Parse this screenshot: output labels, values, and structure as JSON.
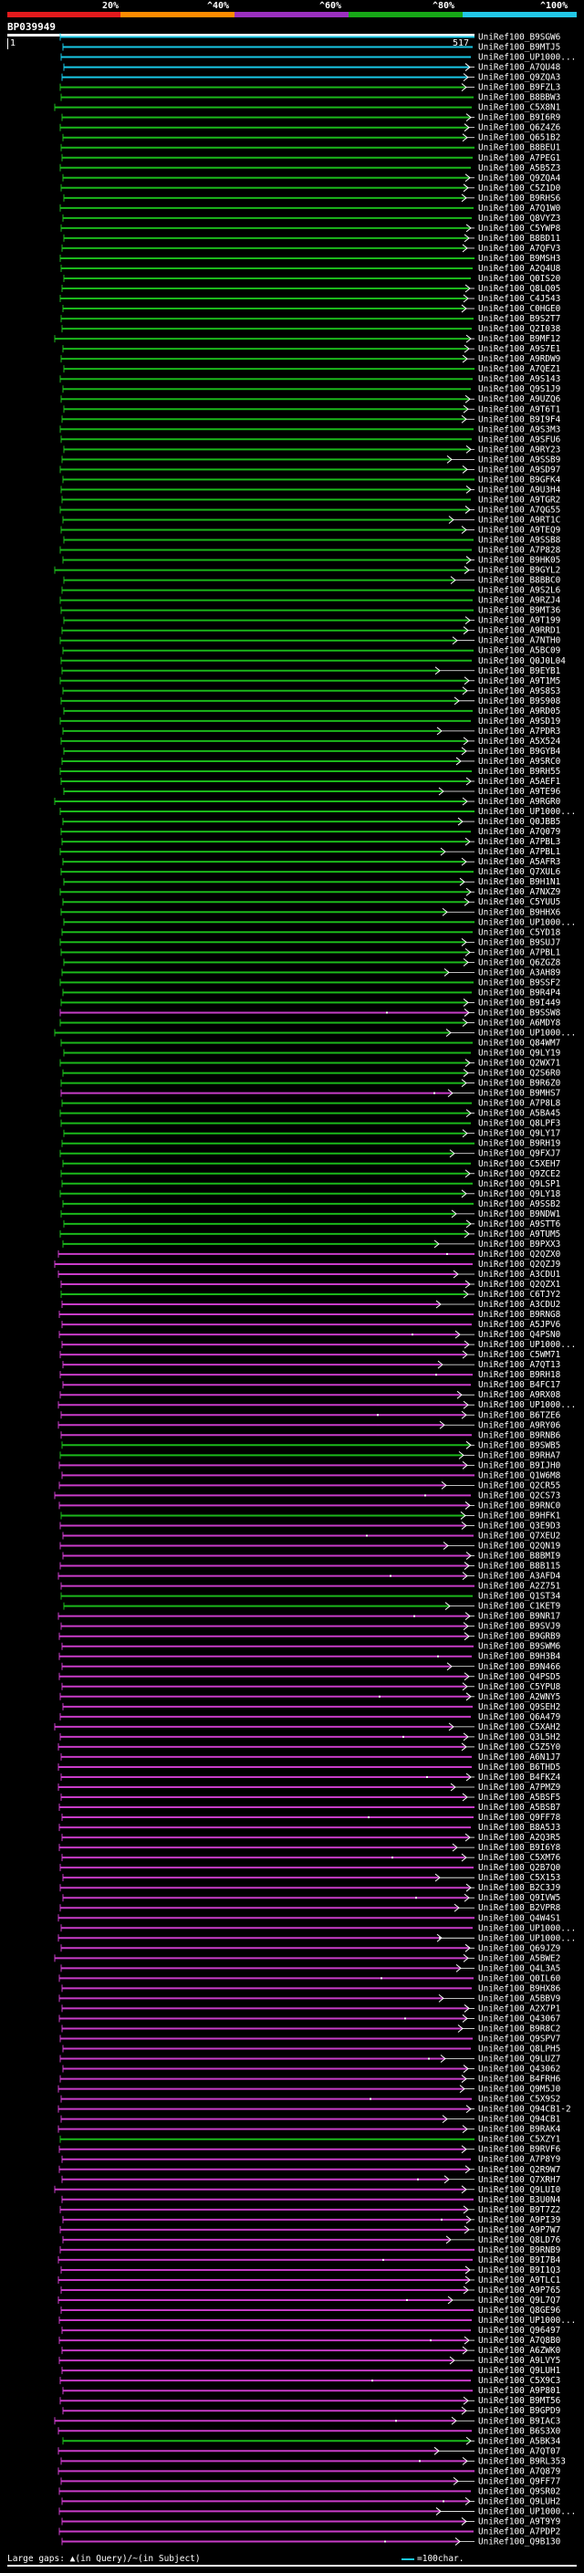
{
  "legend": {
    "labels": [
      "20%",
      "^40%",
      "^60%",
      "^80%",
      "^100%"
    ],
    "colors": [
      "#e31a1c",
      "#ff8c00",
      "#9b30c0",
      "#17a817",
      "#22c8e8"
    ]
  },
  "query": {
    "name": "BP039949",
    "start": "1",
    "end": "517"
  },
  "colors": {
    "cyan": "#19c8e6",
    "green": "#1bb81b",
    "magenta": "#c83cc8",
    "line": "#ffffff"
  },
  "hits": [
    {
      "id": "UniRef100_B9SGW6",
      "color": "cyan"
    },
    {
      "id": "UniRef100_B9MTJ5",
      "color": "cyan"
    },
    {
      "id": "UniRef100_UP1000...",
      "color": "cyan"
    },
    {
      "id": "UniRef100_A7QU48",
      "color": "cyan"
    },
    {
      "id": "UniRef100_Q9ZQA3",
      "color": "cyan"
    },
    {
      "id": "UniRef100_B9FZL3",
      "color": "green"
    },
    {
      "id": "UniRef100_B8BBW3",
      "color": "green"
    },
    {
      "id": "UniRef100_C5X8N1",
      "color": "green"
    },
    {
      "id": "UniRef100_B9I6R9",
      "color": "green"
    },
    {
      "id": "UniRef100_Q6Z4Z6",
      "color": "green"
    },
    {
      "id": "UniRef100_Q651B2",
      "color": "green"
    },
    {
      "id": "UniRef100_B8BEU1",
      "color": "green"
    },
    {
      "id": "UniRef100_A7PEG1",
      "color": "green"
    },
    {
      "id": "UniRef100_A5B5Z3",
      "color": "green"
    },
    {
      "id": "UniRef100_Q9ZQA4",
      "color": "green"
    },
    {
      "id": "UniRef100_C5Z1D0",
      "color": "green"
    },
    {
      "id": "UniRef100_B9RHS6",
      "color": "green"
    },
    {
      "id": "UniRef100_A7Q1W0",
      "color": "green"
    },
    {
      "id": "UniRef100_Q8VYZ3",
      "color": "green"
    },
    {
      "id": "UniRef100_C5YWP8",
      "color": "green"
    },
    {
      "id": "UniRef100_B8BD11",
      "color": "green"
    },
    {
      "id": "UniRef100_A7QFV3",
      "color": "green"
    },
    {
      "id": "UniRef100_B9MSH3",
      "color": "green"
    },
    {
      "id": "UniRef100_A2Q4U8",
      "color": "green"
    },
    {
      "id": "UniRef100_Q0IS20",
      "color": "green"
    },
    {
      "id": "UniRef100_Q8LQ05",
      "color": "green"
    },
    {
      "id": "UniRef100_C4J543",
      "color": "green"
    },
    {
      "id": "UniRef100_C0HGE0",
      "color": "green"
    },
    {
      "id": "UniRef100_B9S2T7",
      "color": "green"
    },
    {
      "id": "UniRef100_Q2I038",
      "color": "green"
    },
    {
      "id": "UniRef100_B9MF12",
      "color": "green"
    },
    {
      "id": "UniRef100_A9S7E1",
      "color": "green"
    },
    {
      "id": "UniRef100_A9RDW9",
      "color": "green"
    },
    {
      "id": "UniRef100_A7QEZ1",
      "color": "green"
    },
    {
      "id": "UniRef100_A9S143",
      "color": "green"
    },
    {
      "id": "UniRef100_Q9S1J9",
      "color": "green"
    },
    {
      "id": "UniRef100_A9UZQ6",
      "color": "green"
    },
    {
      "id": "UniRef100_A9T6T1",
      "color": "green"
    },
    {
      "id": "UniRef100_B9I9F4",
      "color": "green"
    },
    {
      "id": "UniRef100_A9S3M3",
      "color": "green"
    },
    {
      "id": "UniRef100_A9SFU6",
      "color": "green"
    },
    {
      "id": "UniRef100_A9RY23",
      "color": "green"
    },
    {
      "id": "UniRef100_A9SSB9",
      "color": "green"
    },
    {
      "id": "UniRef100_A9SD97",
      "color": "green"
    },
    {
      "id": "UniRef100_B9GFK4",
      "color": "green"
    },
    {
      "id": "UniRef100_A9U3H4",
      "color": "green"
    },
    {
      "id": "UniRef100_A9TGR2",
      "color": "green"
    },
    {
      "id": "UniRef100_A7QG55",
      "color": "green"
    },
    {
      "id": "UniRef100_A9RT1C",
      "color": "green"
    },
    {
      "id": "UniRef100_A9TEQ9",
      "color": "green"
    },
    {
      "id": "UniRef100_A9SSB8",
      "color": "green"
    },
    {
      "id": "UniRef100_A7P828",
      "color": "green"
    },
    {
      "id": "UniRef100_B9HK05",
      "color": "green"
    },
    {
      "id": "UniRef100_B9GYL2",
      "color": "green"
    },
    {
      "id": "UniRef100_B8BBC0",
      "color": "green"
    },
    {
      "id": "UniRef100_A9S2L6",
      "color": "green"
    },
    {
      "id": "UniRef100_A9RZJ4",
      "color": "green"
    },
    {
      "id": "UniRef100_B9MT36",
      "color": "green"
    },
    {
      "id": "UniRef100_A9T199",
      "color": "green"
    },
    {
      "id": "UniRef100_A9RRD1",
      "color": "green"
    },
    {
      "id": "UniRef100_A7NTH0",
      "color": "green"
    },
    {
      "id": "UniRef100_A5BC09",
      "color": "green"
    },
    {
      "id": "UniRef100_Q0J0L04",
      "color": "green"
    },
    {
      "id": "UniRef100_B9EYB1",
      "color": "green"
    },
    {
      "id": "UniRef100_A9T1M5",
      "color": "green"
    },
    {
      "id": "UniRef100_A9S8S3",
      "color": "green"
    },
    {
      "id": "UniRef100_B9S908",
      "color": "green"
    },
    {
      "id": "UniRef100_A9RD05",
      "color": "green"
    },
    {
      "id": "UniRef100_A9SD19",
      "color": "green"
    },
    {
      "id": "UniRef100_A7PDR3",
      "color": "green"
    },
    {
      "id": "UniRef100_A5X524",
      "color": "green"
    },
    {
      "id": "UniRef100_B9GYB4",
      "color": "green"
    },
    {
      "id": "UniRef100_A9SRC0",
      "color": "green"
    },
    {
      "id": "UniRef100_B9RH55",
      "color": "green"
    },
    {
      "id": "UniRef100_A5AEF1",
      "color": "green"
    },
    {
      "id": "UniRef100_A9TE96",
      "color": "green"
    },
    {
      "id": "UniRef100_A9RGR0",
      "color": "green"
    },
    {
      "id": "UniRef100_UP1000...",
      "color": "green"
    },
    {
      "id": "UniRef100_Q0JBB5",
      "color": "green"
    },
    {
      "id": "UniRef100_A7Q079",
      "color": "green"
    },
    {
      "id": "UniRef100_A7PBL3",
      "color": "green"
    },
    {
      "id": "UniRef100_A7PBL1",
      "color": "green"
    },
    {
      "id": "UniRef100_A5AFR3",
      "color": "green"
    },
    {
      "id": "UniRef100_Q7XUL6",
      "color": "green"
    },
    {
      "id": "UniRef100_B9H1N1",
      "color": "green"
    },
    {
      "id": "UniRef100_A7NXZ9",
      "color": "green"
    },
    {
      "id": "UniRef100_C5YUU5",
      "color": "green"
    },
    {
      "id": "UniRef100_B9HHX6",
      "color": "green"
    },
    {
      "id": "UniRef100_UP1000...",
      "color": "green"
    },
    {
      "id": "UniRef100_C5YD18",
      "color": "green"
    },
    {
      "id": "UniRef100_B9SUJ7",
      "color": "green"
    },
    {
      "id": "UniRef100_A7PBL1",
      "color": "green"
    },
    {
      "id": "UniRef100_Q6ZGZ8",
      "color": "green"
    },
    {
      "id": "UniRef100_A3AH89",
      "color": "green"
    },
    {
      "id": "UniRef100_B9SSF2",
      "color": "green"
    },
    {
      "id": "UniRef100_B9R4P4",
      "color": "green"
    },
    {
      "id": "UniRef100_B9I449",
      "color": "green"
    },
    {
      "id": "UniRef100_B9SSW8",
      "color": "magenta"
    },
    {
      "id": "UniRef100_A6MDY8",
      "color": "green"
    },
    {
      "id": "UniRef100_UP1000...",
      "color": "green"
    },
    {
      "id": "UniRef100_Q84WM7",
      "color": "green"
    },
    {
      "id": "UniRef100_Q9LY19",
      "color": "green"
    },
    {
      "id": "UniRef100_Q2WX71",
      "color": "green"
    },
    {
      "id": "UniRef100_Q2S6R0",
      "color": "green"
    },
    {
      "id": "UniRef100_B9R6Z0",
      "color": "green"
    },
    {
      "id": "UniRef100_B9MHS7",
      "color": "magenta"
    },
    {
      "id": "UniRef100_A7P8L8",
      "color": "green"
    },
    {
      "id": "UniRef100_A5BA45",
      "color": "green"
    },
    {
      "id": "UniRef100_Q8LPF3",
      "color": "green"
    },
    {
      "id": "UniRef100_Q9LY17",
      "color": "green"
    },
    {
      "id": "UniRef100_B9RH19",
      "color": "green"
    },
    {
      "id": "UniRef100_Q9FXJ7",
      "color": "green"
    },
    {
      "id": "UniRef100_C5XEH7",
      "color": "green"
    },
    {
      "id": "UniRef100_Q9ZCE2",
      "color": "green"
    },
    {
      "id": "UniRef100_Q9LSP1",
      "color": "green"
    },
    {
      "id": "UniRef100_Q9LY18",
      "color": "green"
    },
    {
      "id": "UniRef100_A9SSB2",
      "color": "green"
    },
    {
      "id": "UniRef100_B9NDW1",
      "color": "green"
    },
    {
      "id": "UniRef100_A9STT6",
      "color": "green"
    },
    {
      "id": "UniRef100_A9TUM5",
      "color": "green"
    },
    {
      "id": "UniRef100_B9PXX3",
      "color": "green"
    },
    {
      "id": "UniRef100_Q2QZX0",
      "color": "magenta"
    },
    {
      "id": "UniRef100_Q2QZJ9",
      "color": "magenta"
    },
    {
      "id": "UniRef100_A3CDU1",
      "color": "magenta"
    },
    {
      "id": "UniRef100_Q2QZX1",
      "color": "magenta"
    },
    {
      "id": "UniRef100_C6TJY2",
      "color": "green"
    },
    {
      "id": "UniRef100_A3CDU2",
      "color": "magenta"
    },
    {
      "id": "UniRef100_B9RNG8",
      "color": "magenta"
    },
    {
      "id": "UniRef100_A5JPV6",
      "color": "magenta"
    },
    {
      "id": "UniRef100_Q4PSN0",
      "color": "magenta"
    },
    {
      "id": "UniRef100_UP1000...",
      "color": "magenta"
    },
    {
      "id": "UniRef100_C5WM71",
      "color": "magenta"
    },
    {
      "id": "UniRef100_A7QT13",
      "color": "magenta"
    },
    {
      "id": "UniRef100_B9RH18",
      "color": "magenta"
    },
    {
      "id": "UniRef100_B4FC17",
      "color": "magenta"
    },
    {
      "id": "UniRef100_A9RX08",
      "color": "magenta"
    },
    {
      "id": "UniRef100_UP1000...",
      "color": "magenta"
    },
    {
      "id": "UniRef100_B6TZE6",
      "color": "magenta"
    },
    {
      "id": "UniRef100_A9RY06",
      "color": "magenta"
    },
    {
      "id": "UniRef100_B9RNB6",
      "color": "magenta"
    },
    {
      "id": "UniRef100_B9SWB5",
      "color": "green"
    },
    {
      "id": "UniRef100_B9RHA7",
      "color": "green"
    },
    {
      "id": "UniRef100_B9IJH0",
      "color": "magenta"
    },
    {
      "id": "UniRef100_Q1W6M8",
      "color": "magenta"
    },
    {
      "id": "UniRef100_Q2CR55",
      "color": "magenta"
    },
    {
      "id": "UniRef100_Q2CS73",
      "color": "magenta"
    },
    {
      "id": "UniRef100_B9RNC0",
      "color": "magenta"
    },
    {
      "id": "UniRef100_B9HFK1",
      "color": "green"
    },
    {
      "id": "UniRef100_Q3E9D3",
      "color": "magenta"
    },
    {
      "id": "UniRef100_Q7XEU2",
      "color": "magenta"
    },
    {
      "id": "UniRef100_Q2QN19",
      "color": "magenta"
    },
    {
      "id": "UniRef100_B8BMI9",
      "color": "magenta"
    },
    {
      "id": "UniRef100_B8B115",
      "color": "magenta"
    },
    {
      "id": "UniRef100_A3AFD4",
      "color": "magenta"
    },
    {
      "id": "UniRef100_A2Z751",
      "color": "magenta"
    },
    {
      "id": "UniRef100_Q1ST34",
      "color": "green"
    },
    {
      "id": "UniRef100_C1KET9",
      "color": "green"
    },
    {
      "id": "UniRef100_B9NR17",
      "color": "magenta"
    },
    {
      "id": "UniRef100_B9SVJ9",
      "color": "magenta"
    },
    {
      "id": "UniRef100_B9GRB9",
      "color": "magenta"
    },
    {
      "id": "UniRef100_B9SWM6",
      "color": "magenta"
    },
    {
      "id": "UniRef100_B9H3B4",
      "color": "magenta"
    },
    {
      "id": "UniRef100_B9N466",
      "color": "magenta"
    },
    {
      "id": "UniRef100_Q4PSD5",
      "color": "magenta"
    },
    {
      "id": "UniRef100_C5YPU8",
      "color": "magenta"
    },
    {
      "id": "UniRef100_A2WNY5",
      "color": "magenta"
    },
    {
      "id": "UniRef100_Q9SEH2",
      "color": "magenta"
    },
    {
      "id": "UniRef100_Q6A479",
      "color": "magenta"
    },
    {
      "id": "UniRef100_C5XAH2",
      "color": "magenta"
    },
    {
      "id": "UniRef100_Q3L5H2",
      "color": "magenta"
    },
    {
      "id": "UniRef100_C5Z5Y0",
      "color": "magenta"
    },
    {
      "id": "UniRef100_A6N1J7",
      "color": "magenta"
    },
    {
      "id": "UniRef100_B6THD5",
      "color": "magenta"
    },
    {
      "id": "UniRef100_B4FKZ4",
      "color": "magenta"
    },
    {
      "id": "UniRef100_A7PMZ9",
      "color": "magenta"
    },
    {
      "id": "UniRef100_A5BSF5",
      "color": "magenta"
    },
    {
      "id": "UniRef100_A5BSB7",
      "color": "magenta"
    },
    {
      "id": "UniRef100_Q9FF78",
      "color": "magenta"
    },
    {
      "id": "UniRef100_B8A5J3",
      "color": "magenta"
    },
    {
      "id": "UniRef100_A2Q3R5",
      "color": "magenta"
    },
    {
      "id": "UniRef100_B9I6Y8",
      "color": "magenta"
    },
    {
      "id": "UniRef100_C5XM76",
      "color": "magenta"
    },
    {
      "id": "UniRef100_Q2B7Q0",
      "color": "magenta"
    },
    {
      "id": "UniRef100_C5X153",
      "color": "magenta"
    },
    {
      "id": "UniRef100_B2C3J9",
      "color": "magenta"
    },
    {
      "id": "UniRef100_Q9IVW5",
      "color": "magenta"
    },
    {
      "id": "UniRef100_B2VPR8",
      "color": "magenta"
    },
    {
      "id": "UniRef100_Q4W4S1",
      "color": "magenta"
    },
    {
      "id": "UniRef100_UP1000...",
      "color": "magenta"
    },
    {
      "id": "UniRef100_UP1000...",
      "color": "magenta"
    },
    {
      "id": "UniRef100_Q69JZ9",
      "color": "magenta"
    },
    {
      "id": "UniRef100_A5BWE2",
      "color": "magenta"
    },
    {
      "id": "UniRef100_Q4L3A5",
      "color": "magenta"
    },
    {
      "id": "UniRef100_Q0IL60",
      "color": "magenta"
    },
    {
      "id": "UniRef100_B9HX86",
      "color": "magenta"
    },
    {
      "id": "UniRef100_A5BBV9",
      "color": "magenta"
    },
    {
      "id": "UniRef100_A2X7P1",
      "color": "magenta"
    },
    {
      "id": "UniRef100_Q43067",
      "color": "magenta"
    },
    {
      "id": "UniRef100_B9R8C2",
      "color": "magenta"
    },
    {
      "id": "UniRef100_Q9SPV7",
      "color": "magenta"
    },
    {
      "id": "UniRef100_Q8LPH5",
      "color": "magenta"
    },
    {
      "id": "UniRef100_Q9LUZ7",
      "color": "magenta"
    },
    {
      "id": "UniRef100_Q43062",
      "color": "magenta"
    },
    {
      "id": "UniRef100_B4FRH6",
      "color": "magenta"
    },
    {
      "id": "UniRef100_Q9M5J0",
      "color": "magenta"
    },
    {
      "id": "UniRef100_C5X9S2",
      "color": "magenta"
    },
    {
      "id": "UniRef100_Q94CB1-2",
      "color": "magenta"
    },
    {
      "id": "UniRef100_Q94CB1",
      "color": "magenta"
    },
    {
      "id": "UniRef100_B9RAK4",
      "color": "magenta"
    },
    {
      "id": "UniRef100_C5XZY1",
      "color": "green"
    },
    {
      "id": "UniRef100_B9RVF6",
      "color": "magenta"
    },
    {
      "id": "UniRef100_A7P8Y9",
      "color": "magenta"
    },
    {
      "id": "UniRef100_Q2R9W7",
      "color": "magenta"
    },
    {
      "id": "UniRef100_Q7XRH7",
      "color": "magenta"
    },
    {
      "id": "UniRef100_Q9LUI0",
      "color": "magenta"
    },
    {
      "id": "UniRef100_B3U0N4",
      "color": "magenta"
    },
    {
      "id": "UniRef100_B9T7Z2",
      "color": "magenta"
    },
    {
      "id": "UniRef100_A9PI39",
      "color": "magenta"
    },
    {
      "id": "UniRef100_A9P7W7",
      "color": "magenta"
    },
    {
      "id": "UniRef100_Q8LD76",
      "color": "magenta"
    },
    {
      "id": "UniRef100_B9RNB9",
      "color": "magenta"
    },
    {
      "id": "UniRef100_B9I7B4",
      "color": "magenta"
    },
    {
      "id": "UniRef100_B9I1Q3",
      "color": "magenta"
    },
    {
      "id": "UniRef100_A9TLC1",
      "color": "magenta"
    },
    {
      "id": "UniRef100_A9P765",
      "color": "magenta"
    },
    {
      "id": "UniRef100_Q9L7Q7",
      "color": "magenta"
    },
    {
      "id": "UniRef100_Q8GE96",
      "color": "magenta"
    },
    {
      "id": "UniRef100_UP1000...",
      "color": "magenta"
    },
    {
      "id": "UniRef100_Q96497",
      "color": "magenta"
    },
    {
      "id": "UniRef100_A7Q8B0",
      "color": "magenta"
    },
    {
      "id": "UniRef100_A6ZWK0",
      "color": "magenta"
    },
    {
      "id": "UniRef100_A9LVY5",
      "color": "magenta"
    },
    {
      "id": "UniRef100_Q9LUH1",
      "color": "magenta"
    },
    {
      "id": "UniRef100_C5X9C3",
      "color": "magenta"
    },
    {
      "id": "UniRef100_A9P801",
      "color": "magenta"
    },
    {
      "id": "UniRef100_B9MT56",
      "color": "magenta"
    },
    {
      "id": "UniRef100_B9GPD9",
      "color": "magenta"
    },
    {
      "id": "UniRef100_B9IAC3",
      "color": "magenta"
    },
    {
      "id": "UniRef100_B6S3X0",
      "color": "magenta"
    },
    {
      "id": "UniRef100_A5BK34",
      "color": "green"
    },
    {
      "id": "UniRef100_A7QT07",
      "color": "magenta"
    },
    {
      "id": "UniRef100_B9RL353",
      "color": "magenta"
    },
    {
      "id": "UniRef100_A7Q879",
      "color": "magenta"
    },
    {
      "id": "UniRef100_Q9FF77",
      "color": "magenta"
    },
    {
      "id": "UniRef100_Q9SR02",
      "color": "magenta"
    },
    {
      "id": "UniRef100_Q9LUH2",
      "color": "magenta"
    },
    {
      "id": "UniRef100_UP1000...",
      "color": "magenta"
    },
    {
      "id": "UniRef100_A9T9Y9",
      "color": "magenta"
    },
    {
      "id": "UniRef100_A7PDP2",
      "color": "magenta"
    },
    {
      "id": "UniRef100_Q9B130",
      "color": "magenta"
    }
  ],
  "footer": {
    "left": "Large gaps: ▲(in Query)/~(in Subject)",
    "right": "=100char."
  }
}
